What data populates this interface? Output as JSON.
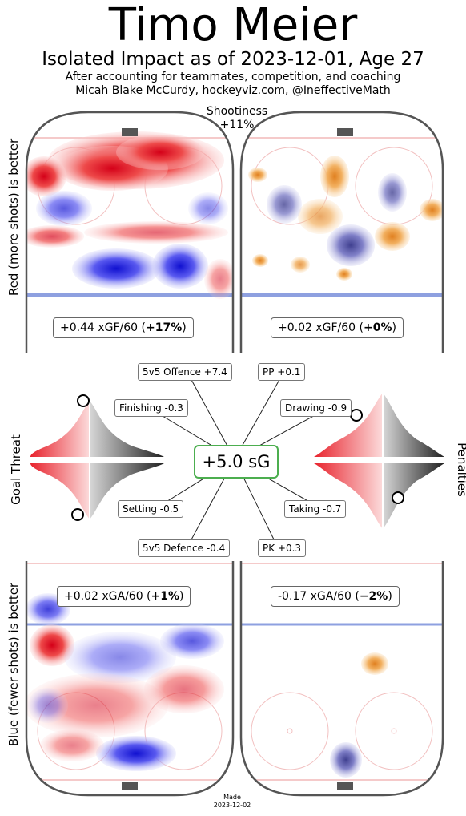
{
  "header": {
    "title": "Timo Meier",
    "subtitle": "Isolated Impact as of 2023-12-01, Age 27",
    "note_line1": "After accounting for teammates, competition, and coaching",
    "note_line2": "Micah Blake McCurdy, hockeyviz.com, @IneffectiveMath",
    "shootiness_label": "Shootiness",
    "shootiness_value": "+11%"
  },
  "side_labels": {
    "top": "Red (more shots) is better",
    "bottom": "Blue (fewer shots) is better",
    "left_middle": "Goal Threat",
    "right_middle": "Penalties"
  },
  "rates": {
    "top_left": {
      "value": "+0.44 xGF/60 (",
      "pct": "+17%",
      "close": ")"
    },
    "top_right": {
      "value": "+0.02 xGF/60 (",
      "pct": "+0%",
      "close": ")"
    },
    "bottom_left": {
      "value": "+0.02 xGA/60 (",
      "pct": "+1%",
      "close": ")"
    },
    "bottom_right": {
      "value": "-0.17 xGA/60 (",
      "pct": "−2%",
      "close": ")"
    }
  },
  "components": {
    "total": "+5.0 sG",
    "ev_offence": "5v5 Offence +7.4",
    "pp": "PP +0.1",
    "finishing": "Finishing -0.3",
    "drawing": "Drawing -0.9",
    "setting": "Setting -0.5",
    "taking": "Taking -0.7",
    "ev_defence": "5v5 Defence -0.4",
    "pk": "PK +0.3"
  },
  "chart_data": {
    "type": "heatmap",
    "title": "Timo Meier",
    "subtitle": "Isolated Impact as of 2023-12-01, Age 27",
    "panels": [
      {
        "name": "5v5 offence",
        "rate": "+0.44 xGF/60",
        "pct": "+17%"
      },
      {
        "name": "PP offence",
        "rate": "+0.02 xGF/60",
        "pct": "+0%"
      },
      {
        "name": "5v5 defence",
        "rate": "+0.02 xGA/60",
        "pct": "+1%"
      },
      {
        "name": "PK defence",
        "rate": "-0.17 xGA/60",
        "pct": "−2%"
      }
    ],
    "goal_threat_markers": {
      "finishing_percentile": 0.95,
      "setting_percentile": 0.05
    },
    "penalty_markers": {
      "drawing_percentile": 0.72,
      "taking_percentile": 0.25
    },
    "colors": {
      "positive": "#e8232d",
      "negative": "#2d2dd8",
      "pp_positive": "#f0a040",
      "pp_negative": "#5050a0",
      "total_border": "#4cae4f"
    }
  },
  "footer": {
    "made_label": "Made",
    "made_date": "2023-12-02"
  }
}
